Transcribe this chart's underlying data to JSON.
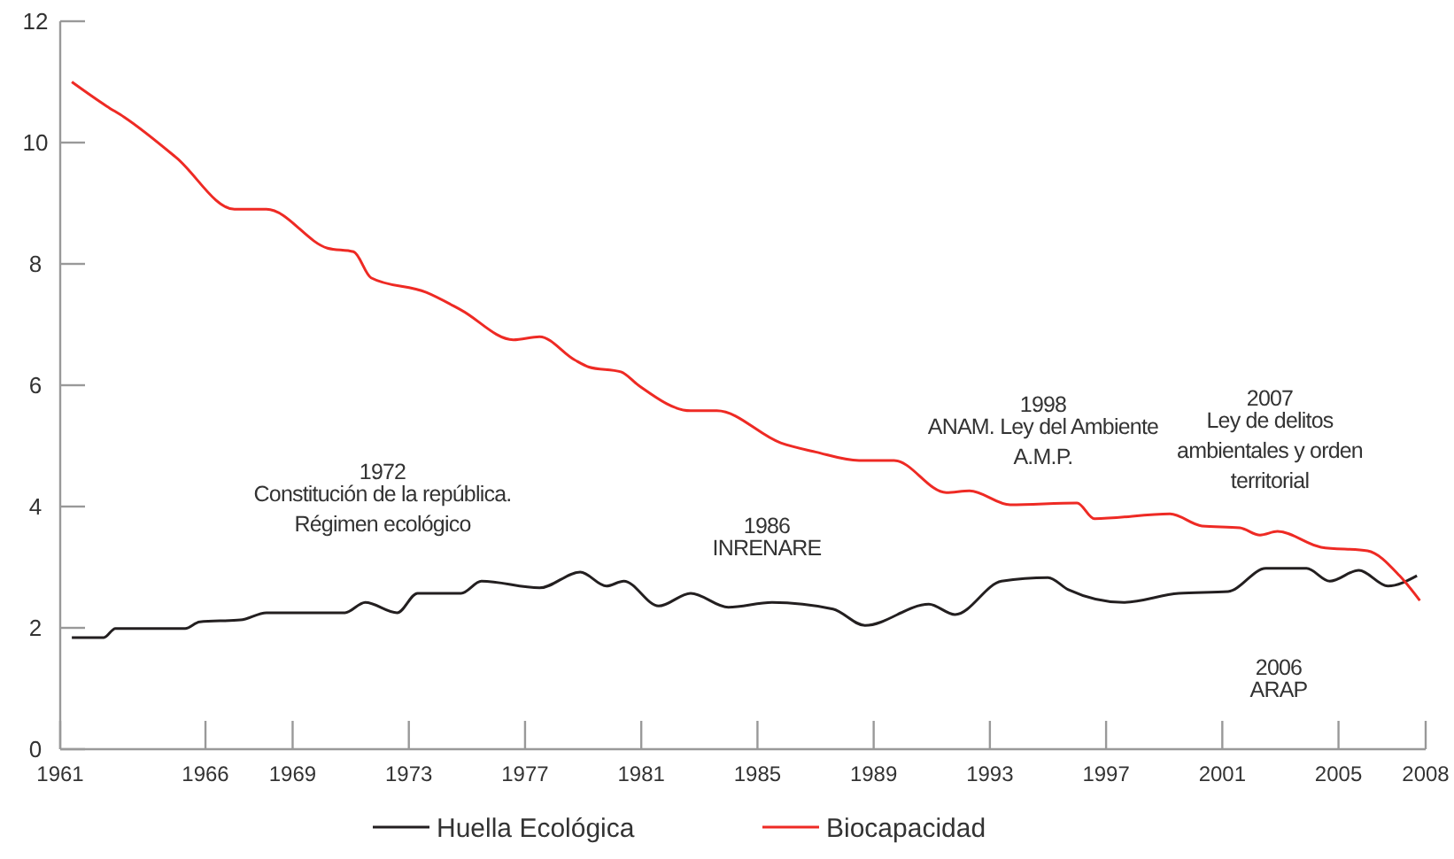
{
  "chart_data": {
    "type": "line",
    "xlim": [
      1961,
      2008
    ],
    "xticks": [
      1961,
      1966,
      1969,
      1973,
      1977,
      1981,
      1985,
      1989,
      1993,
      1997,
      2001,
      2005,
      2008
    ],
    "ylim": [
      0,
      12
    ],
    "yticks": [
      0,
      2,
      4,
      6,
      8,
      10,
      12
    ],
    "grid": false,
    "legend": "bottom",
    "line_style": "solid",
    "marker": "none",
    "series": [
      {
        "name": "Huella Ecológica",
        "color": "#231f20",
        "x": [
          1961.4,
          1962.5,
          1962.9,
          1965.3,
          1965.8,
          1967.2,
          1968.1,
          1970.8,
          1971.5,
          1972.6,
          1973.3,
          1974.8,
          1975.5,
          1977.5,
          1978.9,
          1979.8,
          1980.4,
          1981.6,
          1982.7,
          1984.0,
          1985.5,
          1987.6,
          1988.7,
          1990.9,
          1991.8,
          1993.4,
          1995.0,
          1995.7,
          1997.6,
          1999.5,
          2001.2,
          2002.5,
          2003.9,
          2004.7,
          2005.7,
          2006.7,
          2007.7
        ],
        "values": [
          1.84,
          1.84,
          1.99,
          1.99,
          2.1,
          2.13,
          2.25,
          2.25,
          2.42,
          2.25,
          2.57,
          2.57,
          2.77,
          2.66,
          2.92,
          2.69,
          2.77,
          2.36,
          2.57,
          2.34,
          2.42,
          2.31,
          2.04,
          2.39,
          2.22,
          2.77,
          2.83,
          2.63,
          2.42,
          2.57,
          2.6,
          2.98,
          2.98,
          2.77,
          2.95,
          2.69,
          2.86
        ]
      },
      {
        "name": "Biocapacidad",
        "color": "#ee2a24",
        "x": [
          1961.4,
          1962.6,
          1963.2,
          1965.0,
          1967.0,
          1968.1,
          1970.2,
          1971.1,
          1971.7,
          1973.6,
          1974.8,
          1976.6,
          1977.5,
          1978.7,
          1979.2,
          1980.3,
          1980.9,
          1982.7,
          1983.6,
          1985.8,
          1987.0,
          1988.5,
          1989.7,
          1991.5,
          1992.3,
          1993.7,
          1996.0,
          1996.6,
          1999.2,
          2000.3,
          2001.6,
          2002.3,
          2002.9,
          2004.4,
          2006.0,
          2007.1,
          2007.8
        ],
        "values": [
          11.0,
          10.6,
          10.42,
          9.75,
          8.9,
          8.9,
          8.26,
          8.2,
          7.77,
          7.53,
          7.24,
          6.75,
          6.8,
          6.42,
          6.3,
          6.22,
          6.0,
          5.58,
          5.58,
          5.05,
          4.9,
          4.76,
          4.76,
          4.23,
          4.26,
          4.03,
          4.06,
          3.8,
          3.88,
          3.68,
          3.65,
          3.53,
          3.59,
          3.33,
          3.27,
          2.86,
          2.45
        ]
      }
    ],
    "annotations": [
      "1972\nConstitución de la república.\nRégimen ecológico",
      "1986\nINRENARE",
      "1998\nANAM. Ley del Ambiente\nA.M.P.",
      "2007\nLey de delitos\nambientales y orden\nterritorial",
      "2006\nARAP"
    ]
  }
}
